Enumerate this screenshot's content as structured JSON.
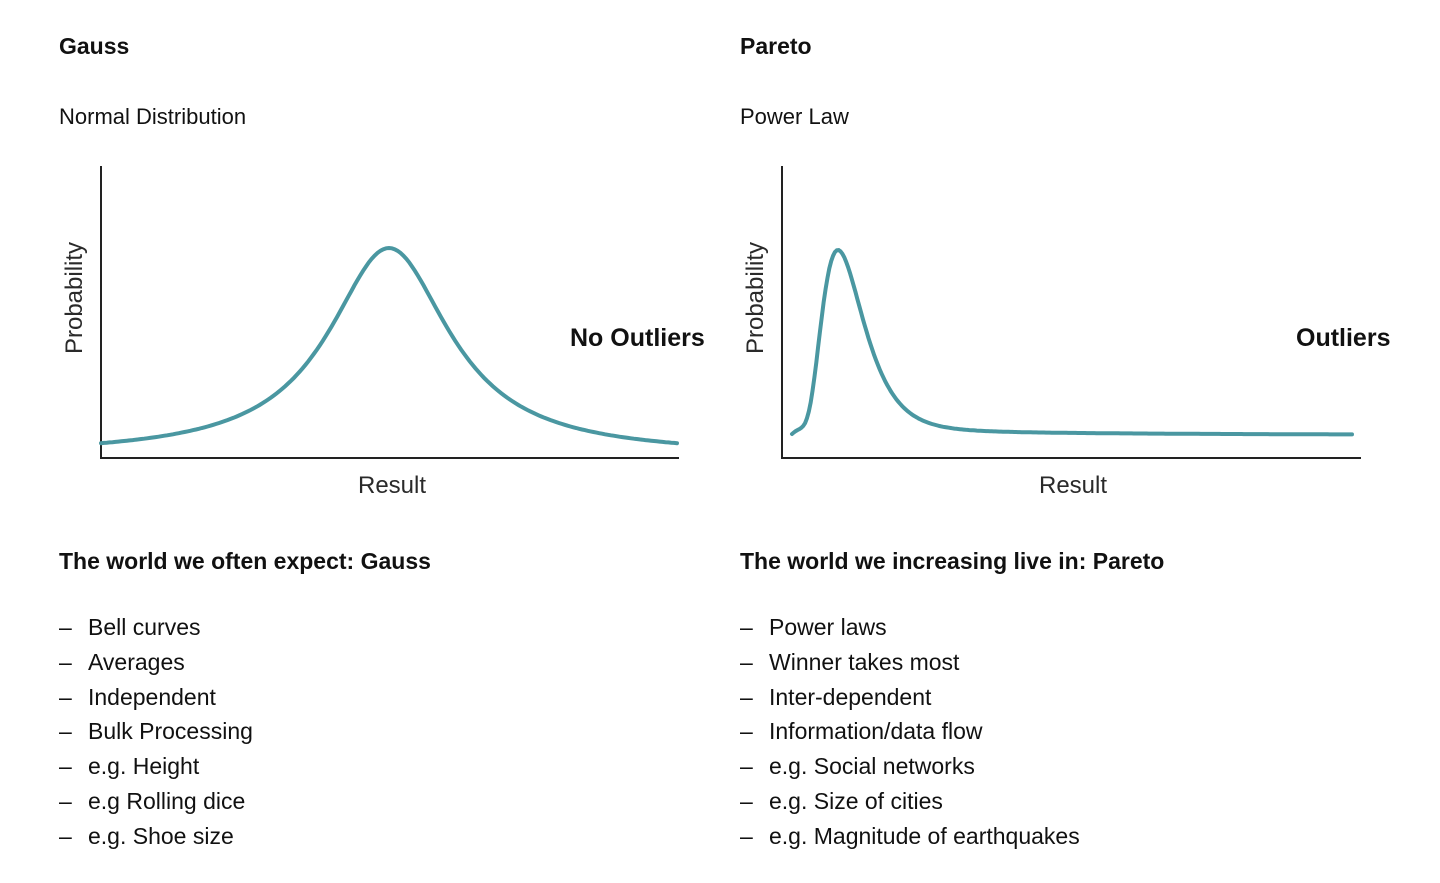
{
  "colors": {
    "curve": "#4a97a1",
    "axis": "#222222"
  },
  "gauss": {
    "title": "Gauss",
    "subtitle": "Normal Distribution",
    "ylabel": "Probability",
    "xlabel": "Result",
    "note": "No Outliers",
    "heading": "The world we often expect: Gauss",
    "dash": "–",
    "items": [
      "Bell curves",
      "Averages",
      "Independent",
      "Bulk Processing",
      "e.g. Height",
      "e.g Rolling dice",
      "e.g. Shoe size"
    ]
  },
  "pareto": {
    "title": "Pareto",
    "subtitle": "Power Law",
    "ylabel": "Probability",
    "xlabel": "Result",
    "note": "Outliers",
    "heading": "The world we increasing live in: Pareto",
    "dash": "–",
    "items": [
      "Power laws",
      "Winner takes most",
      "Inter-dependent",
      "Information/data flow",
      "e.g. Social networks",
      "e.g. Size of cities",
      "e.g. Magnitude of earthquakes"
    ]
  }
}
